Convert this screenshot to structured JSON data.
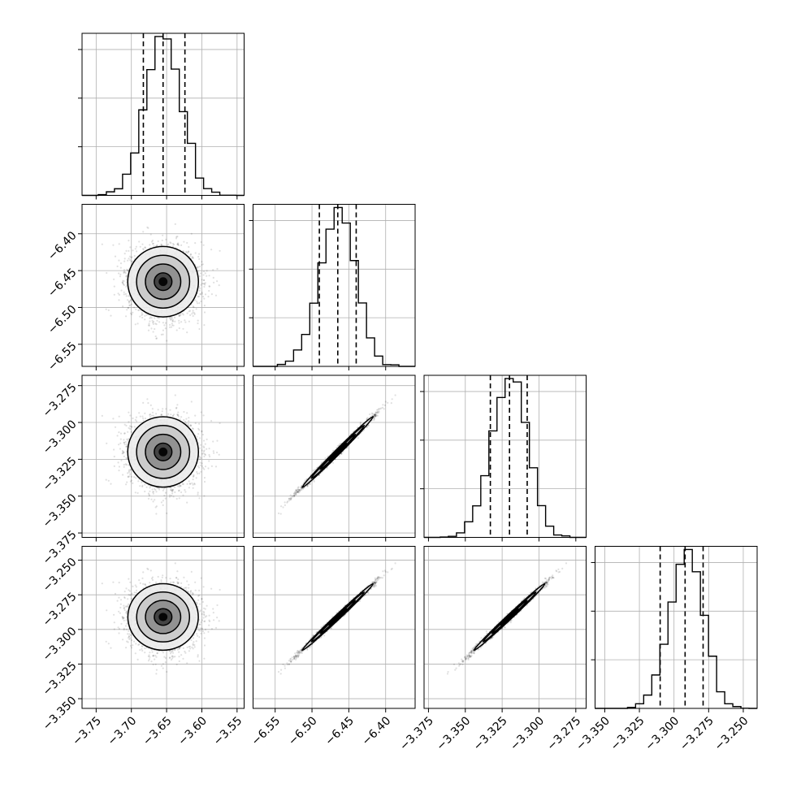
{
  "chart_data": {
    "type": "corner",
    "parameters": [
      {
        "ticks": [
          -3.75,
          -3.7,
          -3.65,
          -3.6,
          -3.55
        ],
        "tick_labels": [
          "−3.75",
          "−3.70",
          "−3.65",
          "−3.60",
          "−3.55"
        ],
        "range": [
          -3.77,
          -3.54
        ],
        "mean": -3.655,
        "std": 0.025,
        "quantiles": [
          -3.683,
          -3.655,
          -3.624
        ]
      },
      {
        "ticks": [
          -6.55,
          -6.5,
          -6.45,
          -6.4
        ],
        "tick_labels": [
          "−6.55",
          "−6.50",
          "−6.45",
          "−6.40"
        ],
        "range": [
          -6.58,
          -6.36
        ],
        "mean": -6.465,
        "std": 0.024,
        "quantiles": [
          -6.49,
          -6.465,
          -6.44
        ]
      },
      {
        "ticks": [
          -3.375,
          -3.35,
          -3.325,
          -3.3,
          -3.275
        ],
        "tick_labels": [
          "−3.375",
          "−3.350",
          "−3.325",
          "−3.300",
          "−3.275"
        ],
        "range": [
          -3.378,
          -3.268
        ],
        "mean": -3.32,
        "std": 0.012,
        "quantiles": [
          -3.333,
          -3.32,
          -3.308
        ]
      },
      {
        "ticks": [
          -3.35,
          -3.325,
          -3.3,
          -3.275,
          -3.25
        ],
        "tick_labels": [
          "−3.350",
          "−3.325",
          "−3.300",
          "−3.275",
          "−3.250"
        ],
        "range": [
          -3.357,
          -3.24
        ],
        "mean": -3.291,
        "std": 0.012,
        "quantiles": [
          -3.31,
          -3.292,
          -3.279
        ]
      }
    ],
    "correlation": [
      [
        1,
        0,
        0,
        0
      ],
      [
        0,
        1,
        0.995,
        0.995
      ],
      [
        0,
        0.995,
        1,
        0.995
      ],
      [
        0,
        0.995,
        0.995,
        1
      ]
    ],
    "histogram_bins": 20,
    "quantile_levels": [
      0.16,
      0.5,
      0.84
    ],
    "contour_levels_sigma": [
      0.5,
      1.0,
      1.5,
      2.0
    ],
    "grid": true,
    "title": "",
    "colors": {
      "line": "#000000",
      "grid": "#b0b0b0",
      "points": "#000000"
    }
  }
}
